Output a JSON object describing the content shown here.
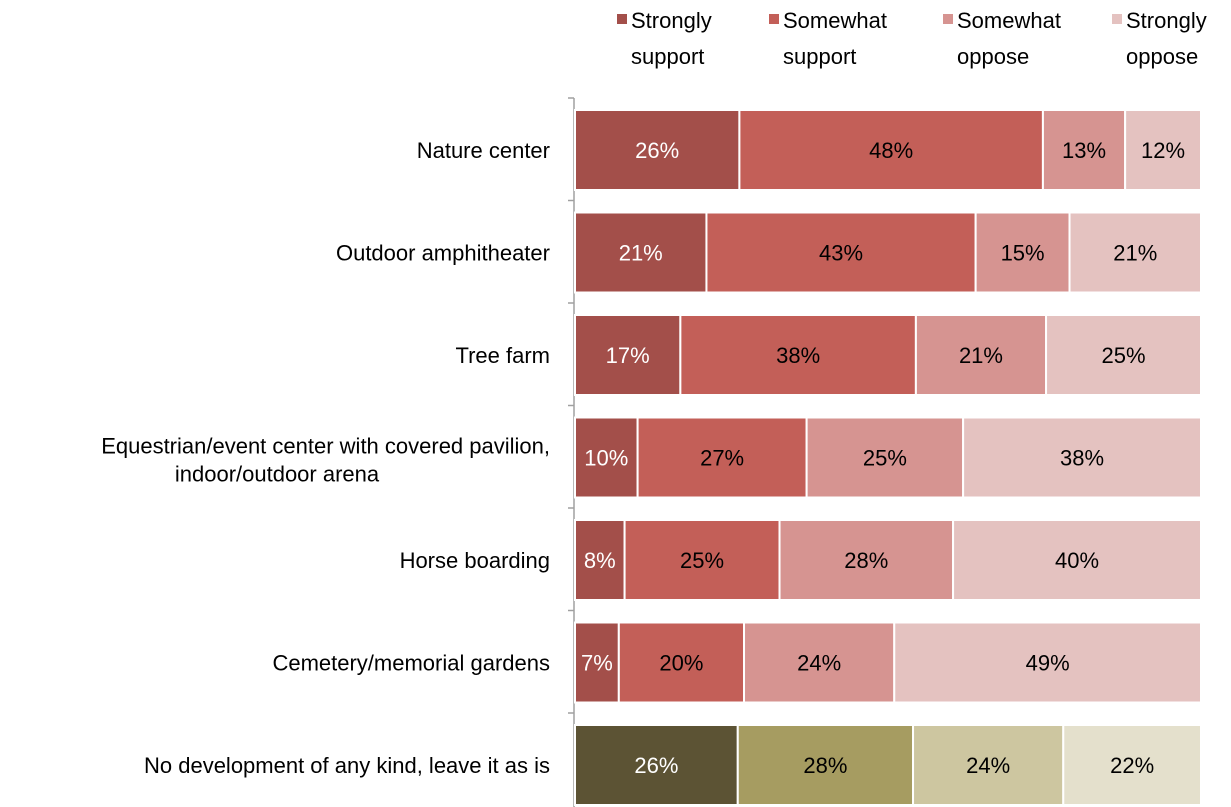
{
  "chart_data": {
    "type": "bar",
    "orientation": "horizontal",
    "stacked": "percent",
    "legend_position": "top-right",
    "legend": [
      "Strongly support",
      "Somewhat support",
      "Somewhat oppose",
      "Strongly oppose"
    ],
    "categories": [
      "Nature center",
      "Outdoor amphitheater",
      "Tree farm",
      "Equestrian/event center with covered pavilion, indoor/outdoor arena",
      "Horse boarding",
      "Cemetery/memorial gardens",
      "No development of any kind, leave it as is"
    ],
    "series": [
      {
        "name": "Strongly support",
        "values": [
          26,
          21,
          17,
          10,
          8,
          7,
          26
        ]
      },
      {
        "name": "Somewhat support",
        "values": [
          48,
          43,
          38,
          27,
          25,
          20,
          28
        ]
      },
      {
        "name": "Somewhat oppose",
        "values": [
          13,
          15,
          21,
          25,
          28,
          24,
          24
        ]
      },
      {
        "name": "Strongly oppose",
        "values": [
          12,
          21,
          25,
          38,
          40,
          49,
          22
        ]
      }
    ],
    "data_label_suffix": "%",
    "colors": [
      "#a34f4a",
      "#c35f58",
      "#d69491",
      "#e4c2c0"
    ],
    "highlight_category_colors": [
      "#5c5334",
      "#a69c61",
      "#cdc6a0",
      "#e4e0cc"
    ],
    "data_label_colors": [
      "#ffffff",
      "#000000",
      "#000000",
      "#000000"
    ],
    "highlight_data_label_colors": [
      "#ffffff",
      "#000000",
      "#000000",
      "#000000"
    ],
    "grid": false
  }
}
